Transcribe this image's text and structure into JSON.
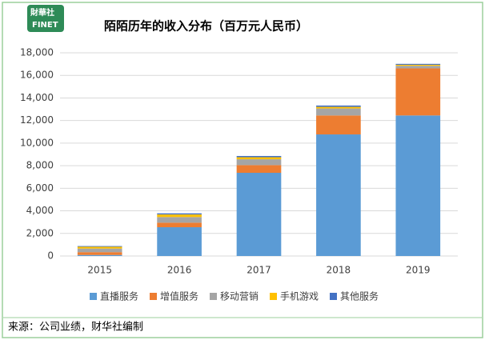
{
  "logo": {
    "name": "財華社",
    "sub": "FINET"
  },
  "chart_data": {
    "type": "stacked_bar",
    "title": "陌陌历年的收入分布（百万元人民币）",
    "categories": [
      "2015",
      "2016",
      "2017",
      "2018",
      "2019"
    ],
    "series": [
      {
        "name": "直播服务",
        "color": "#5b9bd5",
        "values": [
          90,
          2550,
          7370,
          10770,
          12450
        ]
      },
      {
        "name": "增值服务",
        "color": "#ed7d31",
        "values": [
          250,
          400,
          680,
          1680,
          4170
        ]
      },
      {
        "name": "移动营销",
        "color": "#a5a5a5",
        "values": [
          320,
          500,
          520,
          620,
          230
        ]
      },
      {
        "name": "手机游戏",
        "color": "#ffc000",
        "values": [
          160,
          230,
          180,
          140,
          90
        ]
      },
      {
        "name": "其他服务",
        "color": "#4472c4",
        "values": [
          60,
          100,
          110,
          120,
          80
        ]
      }
    ],
    "ylim": [
      0,
      18000
    ],
    "yticks": [
      0,
      {
        "value": 2000,
        "label": "2,000"
      },
      {
        "value": 4000,
        "label": "4,000"
      },
      {
        "value": 6000,
        "label": "6,000"
      },
      {
        "value": 8000,
        "label": "8,000"
      },
      {
        "value": 10000,
        "label": "10,000"
      },
      {
        "value": 12000,
        "label": "12,000"
      },
      {
        "value": 14000,
        "label": "14,000"
      },
      {
        "value": 16000,
        "label": "16,000"
      },
      {
        "value": 18000,
        "label": "18,000"
      }
    ],
    "grid": true,
    "legend": "bottom",
    "source": "来源：公司业绩，财华社编制"
  }
}
